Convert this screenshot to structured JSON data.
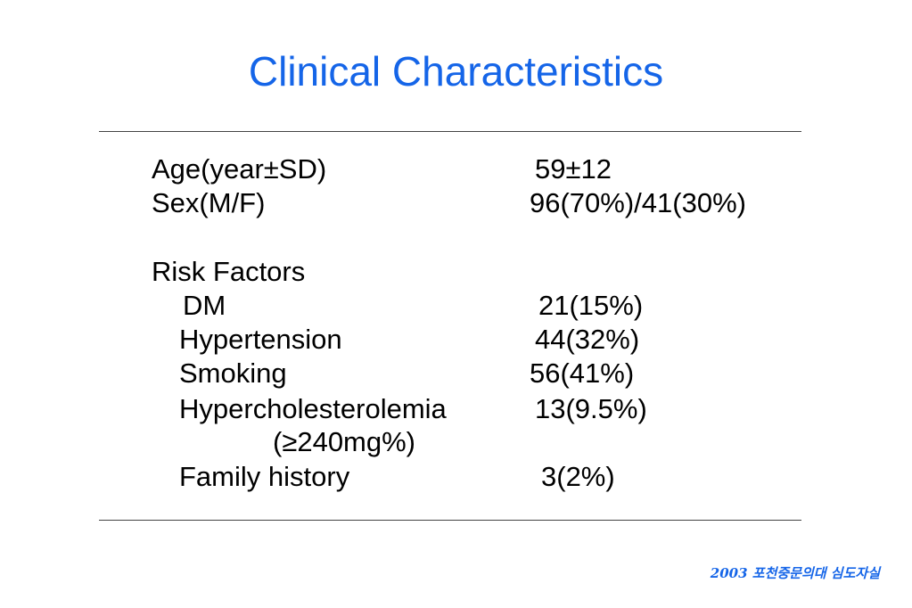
{
  "title": "Clinical Characteristics",
  "rows": {
    "age": {
      "label": "Age(year±SD)",
      "value": "59±12"
    },
    "sex": {
      "label": "Sex(M/F)",
      "value": "96(70%)/41(30%)"
    },
    "risk_header": "Risk Factors",
    "dm": {
      "label": "DM",
      "value": "21(15%)"
    },
    "hypertension": {
      "label": "Hypertension",
      "value": "44(32%)"
    },
    "smoking": {
      "label": "Smoking",
      "value": "56(41%)"
    },
    "hypercholesterolemia": {
      "label": "Hypercholesterolemia",
      "value": "13(9.5%)",
      "note": "(≥240mg%)"
    },
    "family_history": {
      "label": "Family history",
      "value": "3(2%)"
    }
  },
  "footer": "2003 포천중문의대 심도자실",
  "colors": {
    "accent": "#1565e8",
    "text": "#000000",
    "rule": "#444444"
  }
}
